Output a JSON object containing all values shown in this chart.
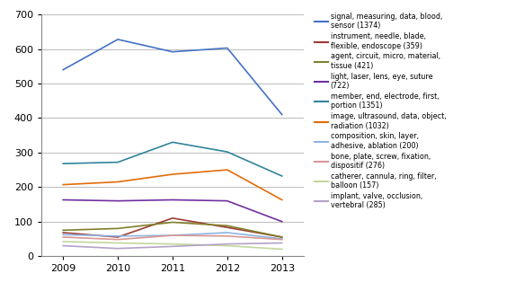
{
  "years": [
    2009,
    2010,
    2011,
    2012,
    2013
  ],
  "series": [
    {
      "label": "signal, measuring, data, blood,\nsensor (1374)",
      "color": "#4472C4",
      "values": [
        540,
        628,
        592,
        603,
        410
      ]
    },
    {
      "label": "instrument, needle, blade,\nflexible, endoscope (359)",
      "color": "#9E3B32",
      "values": [
        68,
        55,
        110,
        83,
        55
      ]
    },
    {
      "label": "agent, circuit, micro, material,\ntissue (421)",
      "color": "#7F7F2A",
      "values": [
        75,
        80,
        98,
        88,
        55
      ]
    },
    {
      "label": "light, laser, lens, eye, suture\n(722)",
      "color": "#7030A0",
      "values": [
        163,
        160,
        163,
        160,
        100
      ]
    },
    {
      "label": "member, end, electrode, first,\nportion (1351)",
      "color": "#31849B",
      "values": [
        268,
        272,
        330,
        302,
        232
      ]
    },
    {
      "label": "image, ultrasound, data, object,\nradiation (1032)",
      "color": "#E36C09",
      "values": [
        207,
        215,
        237,
        250,
        163
      ]
    },
    {
      "label": "composition, skin, layer,\nadhesive, ablation (200)",
      "color": "#8EB4E3",
      "values": [
        62,
        58,
        60,
        68,
        50
      ]
    },
    {
      "label": "bone, plate, screw, fixation,\ndispositif (276)",
      "color": "#D99694",
      "values": [
        55,
        48,
        60,
        58,
        48
      ]
    },
    {
      "label": "catherer, cannula, ring, filter,\nballoon (157)",
      "color": "#C3D69B",
      "values": [
        42,
        38,
        35,
        30,
        20
      ]
    },
    {
      "label": "implant, valve, occlusion,\nvertebral (285)",
      "color": "#B3A2C7",
      "values": [
        30,
        22,
        28,
        35,
        38
      ]
    }
  ],
  "ylim": [
    0,
    700
  ],
  "yticks": [
    0,
    100,
    200,
    300,
    400,
    500,
    600,
    700
  ],
  "figsize": [
    5.73,
    3.24
  ],
  "dpi": 100
}
